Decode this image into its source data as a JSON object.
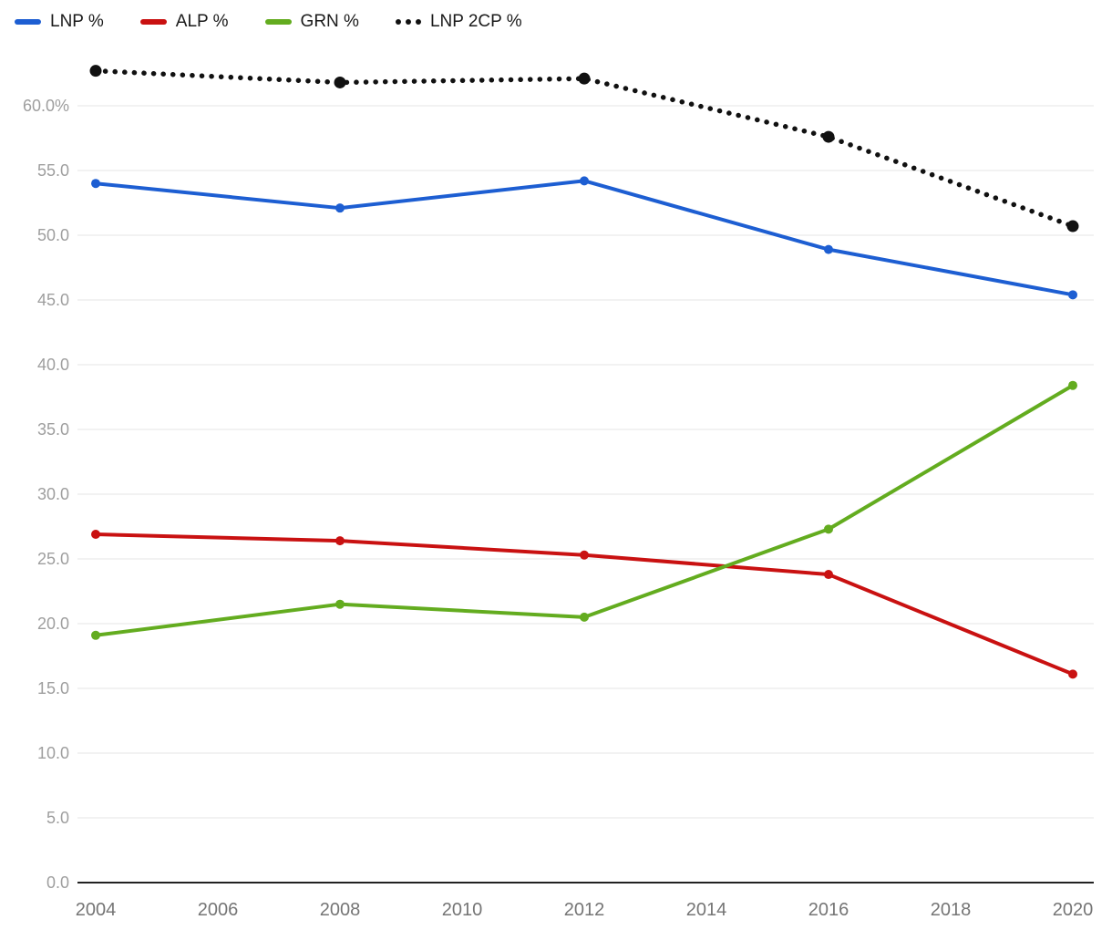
{
  "chart_data": {
    "type": "line",
    "title": "",
    "xlabel": "",
    "ylabel": "",
    "x": [
      2004,
      2008,
      2012,
      2016,
      2020
    ],
    "x_ticks": [
      2004,
      2006,
      2008,
      2010,
      2012,
      2014,
      2016,
      2018,
      2020
    ],
    "y_ticks": [
      0,
      5,
      10,
      15,
      20,
      25,
      30,
      35,
      40,
      45,
      50,
      55,
      60
    ],
    "y_tick_labels": [
      "0.0",
      "5.0",
      "10.0",
      "15.0",
      "20.0",
      "25.0",
      "30.0",
      "35.0",
      "40.0",
      "45.0",
      "50.0",
      "55.0",
      "60.0%"
    ],
    "ylim": [
      0,
      65
    ],
    "grid": true,
    "legend_position": "top-left",
    "series": [
      {
        "name": "LNP %",
        "color": "#1d5ed2",
        "style": "solid",
        "values": [
          54.0,
          52.1,
          54.2,
          48.9,
          45.4
        ]
      },
      {
        "name": "ALP %",
        "color": "#c91111",
        "style": "solid",
        "values": [
          26.9,
          26.4,
          25.3,
          23.8,
          16.1
        ]
      },
      {
        "name": "GRN %",
        "color": "#63ac1f",
        "style": "solid",
        "values": [
          19.1,
          21.5,
          20.5,
          27.3,
          38.4
        ]
      },
      {
        "name": "LNP 2CP %",
        "color": "#111111",
        "style": "dotted",
        "values": [
          62.7,
          61.8,
          62.1,
          57.6,
          50.7
        ]
      }
    ],
    "colors": {
      "grid": "#e6e6e6",
      "axis": "#222222",
      "y_tick_label": "#9e9e9e",
      "x_tick_label": "#757575"
    }
  }
}
